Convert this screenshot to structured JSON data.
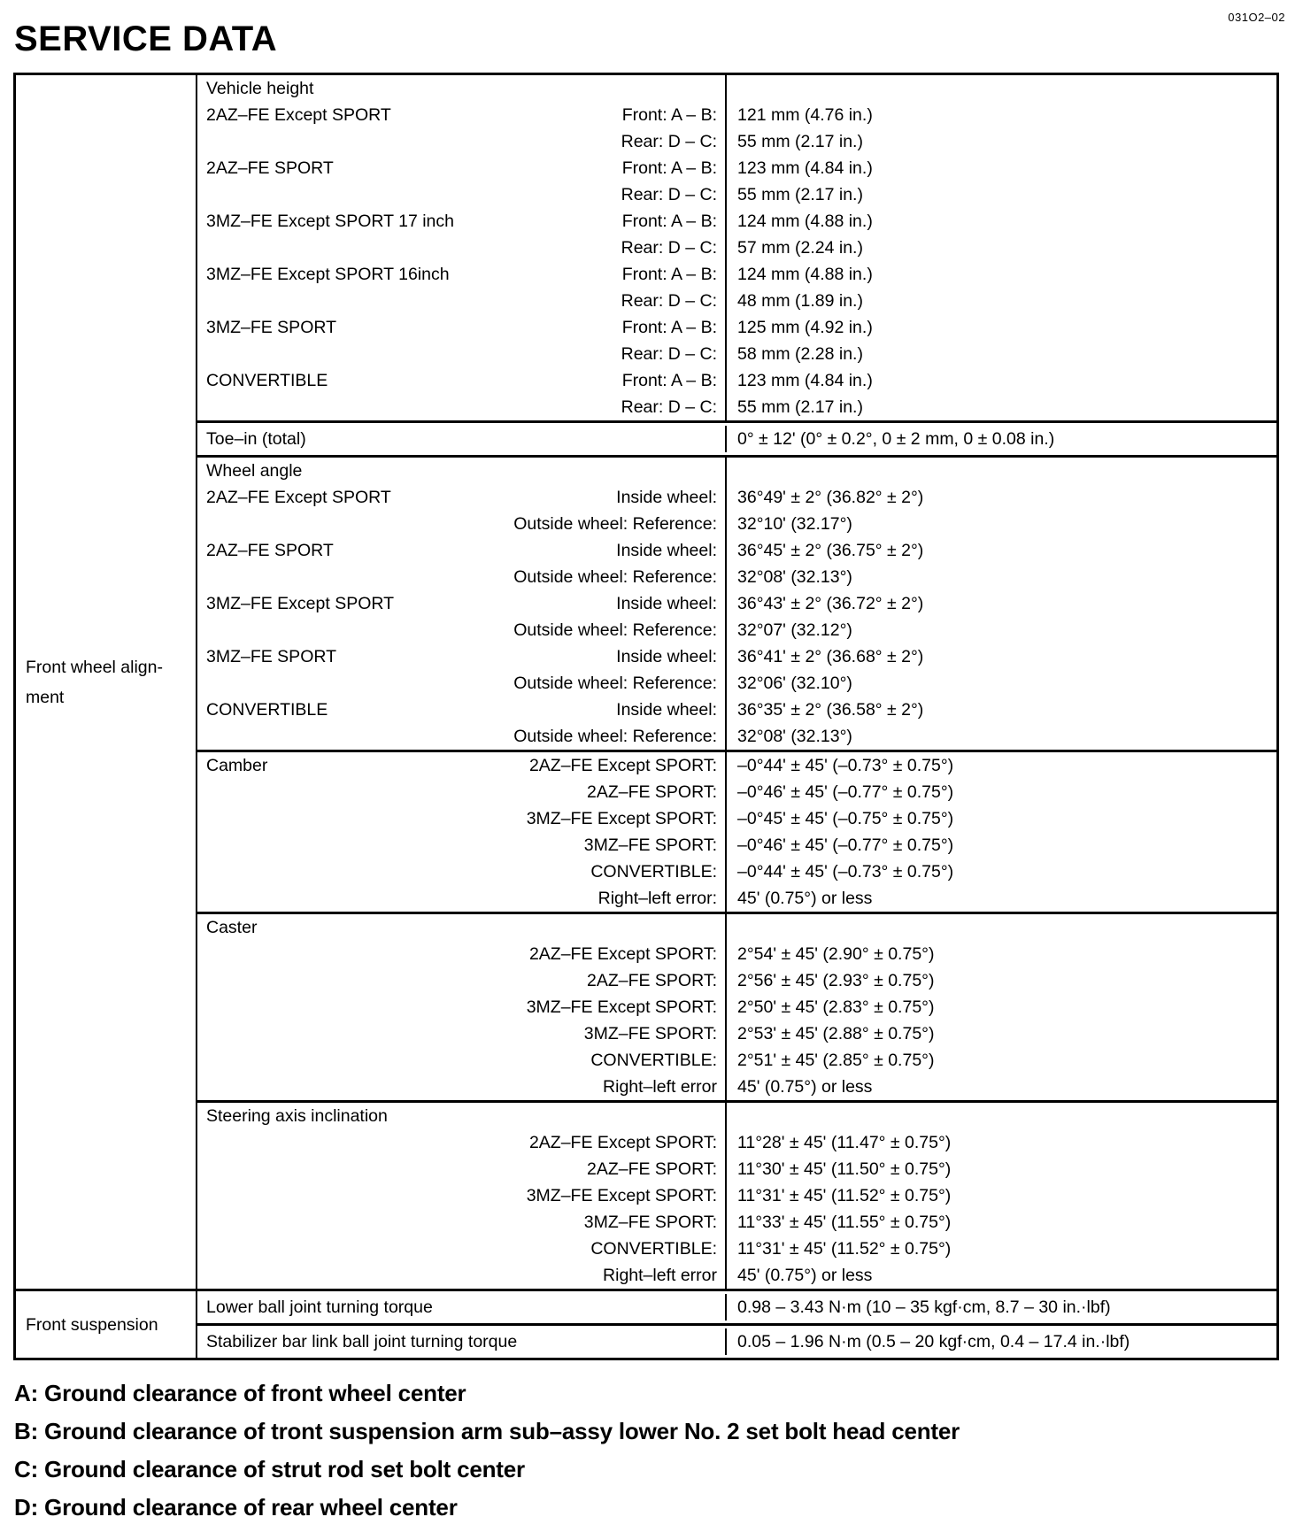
{
  "page": {
    "title": "SERVICE DATA",
    "doc_code": "031O2–02"
  },
  "table": {
    "row_groups": [
      {
        "group_label": "Front wheel align-\nment",
        "sections": [
          {
            "name": "vehicle-height",
            "rows": [
              {
                "label": "Vehicle height",
                "sublabel": "",
                "value": ""
              },
              {
                "label": "2AZ–FE Except SPORT",
                "sublabel": "Front: A – B:",
                "value": "121 mm (4.76 in.)"
              },
              {
                "label": "",
                "sublabel": "Rear: D – C:",
                "value": "55 mm (2.17 in.)"
              },
              {
                "label": "2AZ–FE SPORT",
                "sublabel": "Front: A – B:",
                "value": "123 mm (4.84 in.)"
              },
              {
                "label": "",
                "sublabel": "Rear: D – C:",
                "value": "55 mm (2.17 in.)"
              },
              {
                "label": "3MZ–FE Except SPORT 17 inch",
                "sublabel": "Front: A – B:",
                "value": "124 mm (4.88 in.)"
              },
              {
                "label": "",
                "sublabel": "Rear: D – C:",
                "value": "57 mm (2.24 in.)"
              },
              {
                "label": "3MZ–FE Except SPORT 16inch",
                "sublabel": "Front: A – B:",
                "value": "124 mm (4.88 in.)"
              },
              {
                "label": "",
                "sublabel": "Rear: D – C:",
                "value": "48 mm (1.89 in.)"
              },
              {
                "label": "3MZ–FE SPORT",
                "sublabel": "Front: A – B:",
                "value": "125 mm (4.92 in.)"
              },
              {
                "label": "",
                "sublabel": "Rear: D – C:",
                "value": "58 mm (2.28 in.)"
              },
              {
                "label": "CONVERTIBLE",
                "sublabel": "Front: A – B:",
                "value": "123 mm (4.84 in.)"
              },
              {
                "label": "",
                "sublabel": "Rear: D – C:",
                "value": "55 mm (2.17 in.)"
              }
            ]
          },
          {
            "name": "toe-in",
            "rows": [
              {
                "label": "Toe–in (total)",
                "sublabel": "",
                "value": "0° ± 12' (0° ± 0.2°, 0 ± 2 mm, 0 ± 0.08 in.)"
              }
            ]
          },
          {
            "name": "wheel-angle",
            "rows": [
              {
                "label": "Wheel angle",
                "sublabel": "",
                "value": ""
              },
              {
                "label": "2AZ–FE Except SPORT",
                "sublabel": "Inside wheel:",
                "value": "36°49' ± 2° (36.82° ± 2°)"
              },
              {
                "label": "",
                "sublabel": "Outside wheel: Reference:",
                "value": "32°10' (32.17°)"
              },
              {
                "label": "2AZ–FE SPORT",
                "sublabel": "Inside wheel:",
                "value": "36°45' ± 2° (36.75° ± 2°)"
              },
              {
                "label": "",
                "sublabel": "Outside wheel: Reference:",
                "value": "32°08' (32.13°)"
              },
              {
                "label": "3MZ–FE Except SPORT",
                "sublabel": "Inside wheel:",
                "value": "36°43' ± 2° (36.72° ± 2°)"
              },
              {
                "label": "",
                "sublabel": "Outside wheel: Reference:",
                "value": "32°07' (32.12°)"
              },
              {
                "label": "3MZ–FE SPORT",
                "sublabel": "Inside wheel:",
                "value": "36°41' ± 2° (36.68° ± 2°)"
              },
              {
                "label": "",
                "sublabel": "Outside wheel: Reference:",
                "value": "32°06' (32.10°)"
              },
              {
                "label": "CONVERTIBLE",
                "sublabel": "Inside wheel:",
                "value": "36°35' ± 2° (36.58° ± 2°)"
              },
              {
                "label": "",
                "sublabel": "Outside wheel: Reference:",
                "value": "32°08' (32.13°)"
              }
            ]
          },
          {
            "name": "camber",
            "rows": [
              {
                "label": "Camber",
                "sublabel": "2AZ–FE Except SPORT:",
                "value": "–0°44' ± 45' (–0.73° ± 0.75°)"
              },
              {
                "label": "",
                "sublabel": "2AZ–FE SPORT:",
                "value": "–0°46' ± 45' (–0.77° ± 0.75°)"
              },
              {
                "label": "",
                "sublabel": "3MZ–FE Except SPORT:",
                "value": "–0°45' ± 45' (–0.75° ± 0.75°)"
              },
              {
                "label": "",
                "sublabel": "3MZ–FE SPORT:",
                "value": "–0°46' ± 45' (–0.77° ± 0.75°)"
              },
              {
                "label": "",
                "sublabel": "CONVERTIBLE:",
                "value": "–0°44' ± 45' (–0.73° ± 0.75°)"
              },
              {
                "label": "",
                "sublabel": "Right–left error:",
                "value": "45' (0.75°) or less"
              }
            ]
          },
          {
            "name": "caster",
            "rows": [
              {
                "label": "Caster",
                "sublabel": "",
                "value": ""
              },
              {
                "label": "",
                "sublabel": "2AZ–FE Except SPORT:",
                "value": "2°54' ± 45' (2.90° ± 0.75°)"
              },
              {
                "label": "",
                "sublabel": "2AZ–FE SPORT:",
                "value": "2°56' ± 45' (2.93° ± 0.75°)"
              },
              {
                "label": "",
                "sublabel": "3MZ–FE Except SPORT:",
                "value": "2°50' ± 45' (2.83° ± 0.75°)"
              },
              {
                "label": "",
                "sublabel": "3MZ–FE SPORT:",
                "value": "2°53' ± 45' (2.88° ± 0.75°)"
              },
              {
                "label": "",
                "sublabel": "CONVERTIBLE:",
                "value": "2°51' ± 45' (2.85° ± 0.75°)"
              },
              {
                "label": "",
                "sublabel": "Right–left error",
                "value": "45' (0.75°) or less"
              }
            ]
          },
          {
            "name": "steering-axis-inclination",
            "rows": [
              {
                "label": "Steering axis inclination",
                "sublabel": "",
                "value": ""
              },
              {
                "label": "",
                "sublabel": "2AZ–FE Except SPORT:",
                "value": "11°28' ± 45' (11.47° ± 0.75°)"
              },
              {
                "label": "",
                "sublabel": "2AZ–FE SPORT:",
                "value": "11°30' ± 45' (11.50° ± 0.75°)"
              },
              {
                "label": "",
                "sublabel": "3MZ–FE Except SPORT:",
                "value": "11°31' ± 45' (11.52° ± 0.75°)"
              },
              {
                "label": "",
                "sublabel": "3MZ–FE SPORT:",
                "value": "11°33' ± 45' (11.55° ± 0.75°)"
              },
              {
                "label": "",
                "sublabel": "CONVERTIBLE:",
                "value": "11°31' ± 45' (11.52° ± 0.75°)"
              },
              {
                "label": "",
                "sublabel": "Right–left error",
                "value": "45' (0.75°) or less"
              }
            ]
          }
        ]
      },
      {
        "group_label": "Front suspension",
        "sections": [
          {
            "name": "lower-ball-joint-turning-torque",
            "rows": [
              {
                "label": "Lower ball joint turning torque",
                "sublabel": "",
                "value": "0.98 – 3.43 N·m (10 – 35 kgf·cm, 8.7 – 30 in.·lbf)"
              }
            ]
          },
          {
            "name": "stabilizer-bar-link-ball-joint-turning-torque",
            "rows": [
              {
                "label": "Stabilizer bar link ball joint turning torque",
                "sublabel": "",
                "value": "0.05 – 1.96 N·m (0.5 – 20 kgf·cm, 0.4 – 17.4 in.·lbf)"
              }
            ]
          }
        ]
      }
    ]
  },
  "footnotes": [
    "A: Ground clearance of front wheel center",
    "B: Ground clearance of tront suspension arm sub–assy lower No. 2 set bolt head center",
    "C: Ground clearance of strut rod set bolt center",
    "D: Ground clearance of rear wheel center"
  ]
}
